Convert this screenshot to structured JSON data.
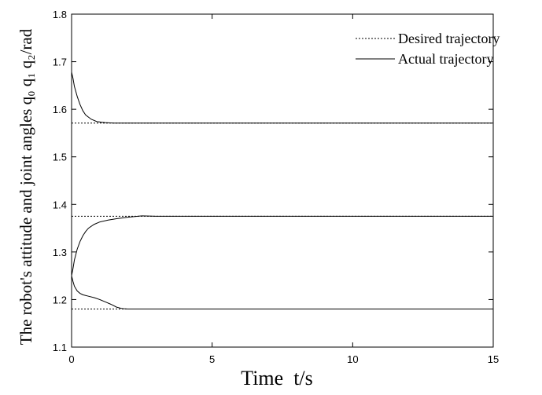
{
  "chart_data": {
    "type": "line",
    "xlabel": "Time  t/s",
    "ylabel": "The robot's attitude and joint angles q₀ q₁ q₂/rad",
    "xlim": [
      0,
      15
    ],
    "ylim": [
      1.1,
      1.8
    ],
    "xticks": [
      "0",
      "5",
      "10",
      "15"
    ],
    "yticks": [
      "1.1",
      "1.2",
      "1.3",
      "1.4",
      "1.5",
      "1.6",
      "1.7",
      "1.8"
    ],
    "grid": false,
    "legend": {
      "position": "top-right",
      "entries": [
        "Desired trajectory",
        "Actual trajectory"
      ]
    },
    "series": [
      {
        "name": "Desired trajectory",
        "style": "dotted",
        "lines": [
          {
            "x": [
              0,
              15
            ],
            "y": [
              1.571,
              1.571
            ]
          },
          {
            "x": [
              0,
              15
            ],
            "y": [
              1.375,
              1.375
            ]
          },
          {
            "x": [
              0,
              15
            ],
            "y": [
              1.18,
              1.18
            ]
          }
        ]
      },
      {
        "name": "Actual trajectory",
        "style": "solid",
        "lines": [
          {
            "x": [
              0,
              0.05,
              0.1,
              0.2,
              0.3,
              0.4,
              0.5,
              0.7,
              0.9,
              1.2,
              1.5,
              2,
              3,
              5,
              7,
              10,
              15
            ],
            "y": [
              1.678,
              1.665,
              1.648,
              1.627,
              1.61,
              1.597,
              1.588,
              1.579,
              1.574,
              1.572,
              1.571,
              1.571,
              1.571,
              1.571,
              1.571,
              1.571,
              1.571
            ]
          },
          {
            "x": [
              0,
              0.05,
              0.1,
              0.2,
              0.3,
              0.4,
              0.5,
              0.6,
              0.8,
              1.0,
              1.3,
              1.6,
              2.0,
              2.5,
              3.0,
              3.5,
              5,
              7,
              10,
              15
            ],
            "y": [
              1.25,
              1.265,
              1.283,
              1.306,
              1.322,
              1.334,
              1.343,
              1.35,
              1.358,
              1.363,
              1.367,
              1.37,
              1.373,
              1.376,
              1.375,
              1.375,
              1.375,
              1.375,
              1.375,
              1.375
            ]
          },
          {
            "x": [
              0,
              0.05,
              0.1,
              0.2,
              0.3,
              0.4,
              0.6,
              0.8,
              1.0,
              1.2,
              1.4,
              1.6,
              1.8,
              2.0,
              2.5,
              3.0,
              3.5,
              5,
              7,
              10,
              15
            ],
            "y": [
              1.25,
              1.238,
              1.228,
              1.218,
              1.213,
              1.21,
              1.207,
              1.204,
              1.2,
              1.195,
              1.19,
              1.184,
              1.181,
              1.18,
              1.18,
              1.18,
              1.18,
              1.18,
              1.18,
              1.18,
              1.18
            ]
          }
        ]
      }
    ]
  }
}
